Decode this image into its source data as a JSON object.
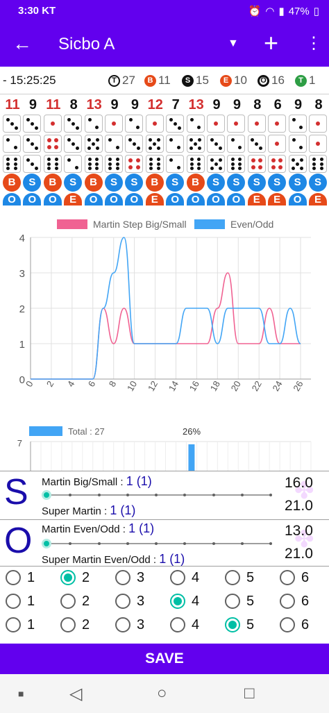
{
  "status_bar": {
    "time": "3:30",
    "carrier": "KT",
    "battery": "47%"
  },
  "app_bar": {
    "title": "Sicbo A"
  },
  "stats": {
    "time": "- 15:25:25",
    "items": [
      {
        "badge": "T",
        "color": "#ffffff",
        "count": "27"
      },
      {
        "badge": "B",
        "color": "#e64a19",
        "count": "11"
      },
      {
        "badge": "S",
        "color": "#111111",
        "count": "15"
      },
      {
        "badge": "E",
        "color": "#e64a19",
        "count": "10"
      },
      {
        "badge": "O",
        "color": "#ffffff",
        "count": "16"
      },
      {
        "badge": "T",
        "color": "#2e9e45",
        "count": "1"
      }
    ]
  },
  "rolls": [
    {
      "sum": "11",
      "hi": true,
      "dice": [
        3,
        2,
        6
      ],
      "bs": "B",
      "eo": "O"
    },
    {
      "sum": "9",
      "hi": false,
      "dice": [
        3,
        3,
        3
      ],
      "bs": "S",
      "eo": "O"
    },
    {
      "sum": "11",
      "hi": true,
      "dice": [
        1,
        4,
        6
      ],
      "bs": "B",
      "eo": "O"
    },
    {
      "sum": "8",
      "hi": false,
      "dice": [
        3,
        3,
        2
      ],
      "bs": "S",
      "eo": "E"
    },
    {
      "sum": "13",
      "hi": true,
      "dice": [
        2,
        5,
        6
      ],
      "bs": "B",
      "eo": "O"
    },
    {
      "sum": "9",
      "hi": false,
      "dice": [
        1,
        2,
        6
      ],
      "bs": "S",
      "eo": "O"
    },
    {
      "sum": "9",
      "hi": false,
      "dice": [
        2,
        3,
        4
      ],
      "bs": "S",
      "eo": "O"
    },
    {
      "sum": "12",
      "hi": true,
      "dice": [
        1,
        5,
        6
      ],
      "bs": "B",
      "eo": "E"
    },
    {
      "sum": "7",
      "hi": false,
      "dice": [
        3,
        2,
        2
      ],
      "bs": "S",
      "eo": "O"
    },
    {
      "sum": "13",
      "hi": true,
      "dice": [
        2,
        5,
        6
      ],
      "bs": "B",
      "eo": "O"
    },
    {
      "sum": "9",
      "hi": false,
      "dice": [
        1,
        3,
        5
      ],
      "bs": "S",
      "eo": "O"
    },
    {
      "sum": "9",
      "hi": false,
      "dice": [
        1,
        2,
        6
      ],
      "bs": "S",
      "eo": "O"
    },
    {
      "sum": "8",
      "hi": false,
      "dice": [
        1,
        3,
        4
      ],
      "bs": "S",
      "eo": "E"
    },
    {
      "sum": "6",
      "hi": false,
      "dice": [
        1,
        1,
        4
      ],
      "bs": "S",
      "eo": "E"
    },
    {
      "sum": "9",
      "hi": false,
      "dice": [
        2,
        2,
        5
      ],
      "bs": "S",
      "eo": "O"
    },
    {
      "sum": "8",
      "hi": false,
      "dice": [
        1,
        1,
        6
      ],
      "bs": "S",
      "eo": "E"
    }
  ],
  "colors": {
    "accent": "#6200ee",
    "big": "#e64a19",
    "small": "#1e88e5",
    "teal": "#00bfa5",
    "martin": "#f06292",
    "evenodd": "#42a5f5"
  },
  "chart_data": [
    {
      "type": "line",
      "legend": [
        "Martin Step Big/Small",
        "Even/Odd"
      ],
      "series": [
        {
          "name": "Martin Step Big/Small",
          "values": [
            0,
            0,
            0,
            0,
            0,
            0,
            0,
            2,
            1,
            2,
            1,
            1,
            1,
            1,
            1,
            1,
            1,
            1,
            2,
            3,
            1,
            1,
            1,
            2,
            1,
            1,
            1
          ]
        },
        {
          "name": "Even/Odd",
          "values": [
            0,
            0,
            0,
            0,
            0,
            0,
            0,
            2,
            3,
            4,
            1,
            1,
            1,
            1,
            1,
            2,
            2,
            2,
            1,
            2,
            2,
            2,
            2,
            1,
            1,
            2,
            1
          ]
        }
      ],
      "x": [
        0,
        1,
        2,
        3,
        4,
        5,
        6,
        7,
        8,
        9,
        10,
        11,
        12,
        13,
        14,
        15,
        16,
        17,
        18,
        19,
        20,
        21,
        22,
        23,
        24,
        25,
        26
      ],
      "x_ticks": [
        "0",
        "2",
        "4",
        "6",
        "8",
        "10",
        "12",
        "14",
        "16",
        "18",
        "20",
        "22",
        "24",
        "26"
      ],
      "y_ticks": [
        "0",
        "1",
        "2",
        "3",
        "4"
      ],
      "ylim": [
        0,
        4
      ],
      "grid": true,
      "legend_placement": "top"
    },
    {
      "type": "bar",
      "legend": [
        "Total : 27"
      ],
      "y_ticks": [
        "7"
      ],
      "annotation": "26%",
      "values": [
        0,
        0,
        0,
        0,
        0,
        0,
        0,
        0,
        0,
        0,
        0,
        0,
        0,
        0,
        0,
        26,
        0,
        0,
        0,
        0,
        0,
        0,
        0,
        0,
        0,
        0,
        0
      ]
    }
  ],
  "panel_s": {
    "letter": "S",
    "line1_label": "Martin Big/Small :",
    "line1_value": "1 (1)",
    "line2_label": "Super Martin :",
    "line2_value": "1 (1)",
    "num_top": "16.0",
    "num_bottom": "21.0",
    "slider_value": 0
  },
  "panel_o": {
    "letter": "O",
    "line1_label": "Martin Even/Odd :",
    "line1_value": "1 (1)",
    "line2_label": "Super Martin Even/Odd :",
    "line2_value": "1 (1)",
    "num_top": "13.0",
    "num_bottom": "21.0",
    "slider_value": 0
  },
  "radio_rows": [
    {
      "options": [
        "1",
        "2",
        "3",
        "4",
        "5",
        "6"
      ],
      "selected": 1
    },
    {
      "options": [
        "1",
        "2",
        "3",
        "4",
        "5",
        "6"
      ],
      "selected": 3
    },
    {
      "options": [
        "1",
        "2",
        "3",
        "4",
        "5",
        "6"
      ],
      "selected": 4
    }
  ],
  "save_label": "SAVE"
}
